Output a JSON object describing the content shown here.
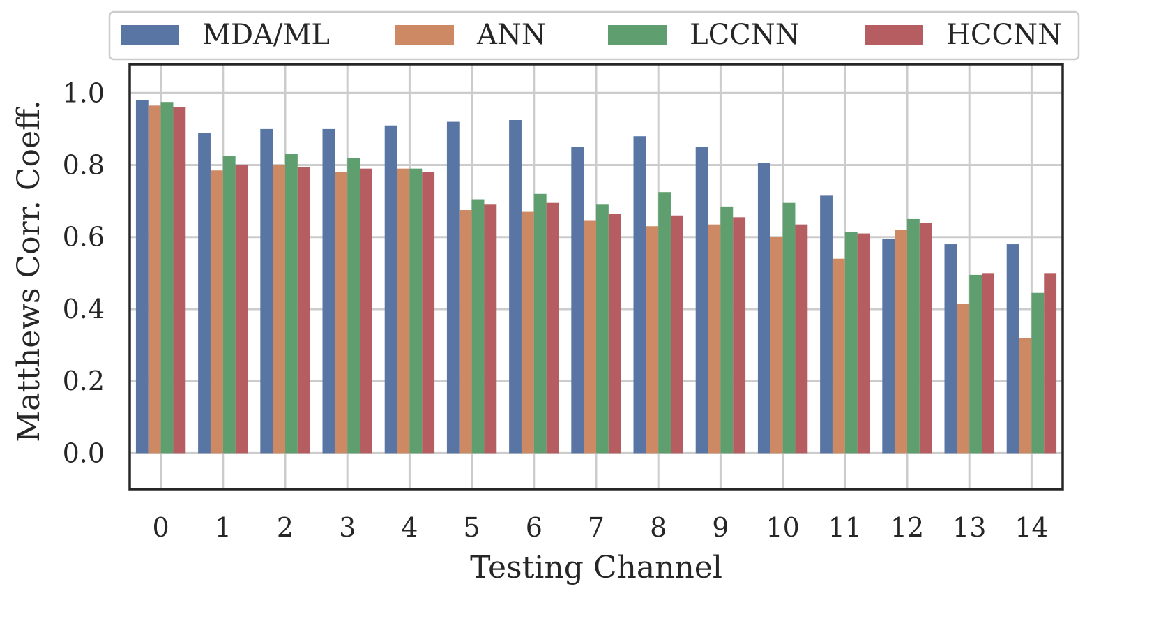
{
  "chart_data": {
    "type": "bar",
    "title": "",
    "xlabel": "Testing Channel",
    "ylabel": "Matthews Corr. Coeff.",
    "ylim": [
      -0.1,
      1.08
    ],
    "yticks": [
      "0.0",
      "0.2",
      "0.4",
      "0.6",
      "0.8",
      "1.0"
    ],
    "ytick_values": [
      0.0,
      0.2,
      0.4,
      0.6,
      0.8,
      1.0
    ],
    "categories": [
      "0",
      "1",
      "2",
      "3",
      "4",
      "5",
      "6",
      "7",
      "8",
      "9",
      "10",
      "11",
      "12",
      "13",
      "14"
    ],
    "legend_position": "top",
    "grid": true,
    "series": [
      {
        "name": "MDA/ML",
        "color": "#5975a4",
        "values": [
          0.98,
          0.89,
          0.9,
          0.9,
          0.91,
          0.92,
          0.925,
          0.85,
          0.88,
          0.85,
          0.805,
          0.715,
          0.595,
          0.58,
          0.58
        ]
      },
      {
        "name": "ANN",
        "color": "#cc8963",
        "values": [
          0.965,
          0.785,
          0.8,
          0.78,
          0.79,
          0.675,
          0.67,
          0.645,
          0.63,
          0.635,
          0.6,
          0.54,
          0.62,
          0.415,
          0.32
        ]
      },
      {
        "name": "LCCNN",
        "color": "#5f9e6e",
        "values": [
          0.975,
          0.825,
          0.83,
          0.82,
          0.79,
          0.705,
          0.72,
          0.69,
          0.725,
          0.685,
          0.695,
          0.615,
          0.65,
          0.495,
          0.445
        ]
      },
      {
        "name": "HCCNN",
        "color": "#b55d60",
        "values": [
          0.96,
          0.8,
          0.795,
          0.79,
          0.78,
          0.69,
          0.695,
          0.665,
          0.66,
          0.655,
          0.635,
          0.61,
          0.64,
          0.5,
          0.5
        ]
      }
    ]
  }
}
